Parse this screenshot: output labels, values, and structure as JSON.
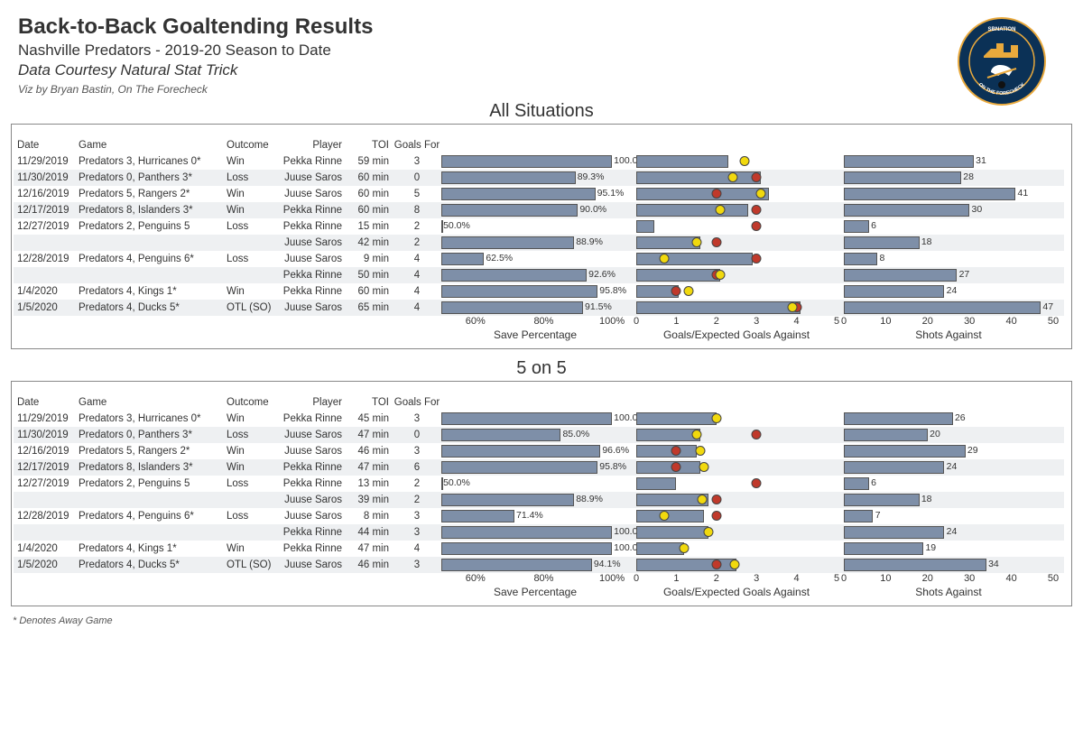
{
  "header": {
    "title": "Back-to-Back Goaltending Results",
    "subtitle": "Nashville Predators - 2019-20 Season to Date",
    "data_credit": "Data Courtesy Natural Stat Trick",
    "viz_credit": "Viz by Bryan Bastin, On The Forecheck"
  },
  "footnote": "* Denotes Away Game",
  "sections": [
    {
      "title": "All Situations",
      "savepct": {
        "min": 50,
        "max": 105,
        "ticks": [
          60,
          80,
          100
        ],
        "label": "Save Percentage"
      },
      "goals": {
        "min": 0,
        "max": 5,
        "ticks": [
          0,
          1,
          2,
          3,
          4,
          5
        ],
        "label": "Goals/Expected Goals Against"
      },
      "shots": {
        "min": 0,
        "max": 50,
        "ticks": [
          0,
          10,
          20,
          30,
          40,
          50
        ],
        "label": "Shots Against"
      },
      "columns": [
        "Date",
        "Game",
        "Outcome",
        "Player",
        "TOI",
        "Goals For"
      ],
      "rows": [
        {
          "date": "11/29/2019",
          "game": "Predators 3, Hurricanes 0*",
          "outcome": "Win",
          "player": "Pekka Rinne",
          "toi": "59 min",
          "gf": 3,
          "savepct": 100.0,
          "goals_bar": 2.3,
          "ga": 0,
          "xga": 2.7,
          "shots": 31
        },
        {
          "date": "11/30/2019",
          "game": "Predators 0, Panthers 3*",
          "outcome": "Loss",
          "player": "Juuse Saros",
          "toi": "60 min",
          "gf": 0,
          "savepct": 89.3,
          "goals_bar": 3.1,
          "ga": 3,
          "xga": 2.4,
          "shots": 28,
          "alt": true
        },
        {
          "date": "12/16/2019",
          "game": "Predators 5, Rangers 2*",
          "outcome": "Win",
          "player": "Juuse Saros",
          "toi": "60 min",
          "gf": 5,
          "savepct": 95.1,
          "goals_bar": 3.3,
          "ga": 2,
          "xga": 3.1,
          "shots": 41
        },
        {
          "date": "12/17/2019",
          "game": "Predators 8, Islanders 3*",
          "outcome": "Win",
          "player": "Pekka Rinne",
          "toi": "60 min",
          "gf": 8,
          "savepct": 90.0,
          "goals_bar": 2.8,
          "ga": 3,
          "xga": 2.1,
          "shots": 30,
          "alt": true
        },
        {
          "date": "12/27/2019",
          "game": "Predators 2, Penguins 5",
          "outcome": "Loss",
          "player": "Pekka Rinne",
          "toi": "15 min",
          "gf": 2,
          "savepct": 50.0,
          "goals_bar": 0.45,
          "ga": 3,
          "xga": null,
          "shots": 6
        },
        {
          "date": "",
          "game": "",
          "outcome": "",
          "player": "Juuse Saros",
          "toi": "42 min",
          "gf": 2,
          "savepct": 88.9,
          "goals_bar": 1.6,
          "ga": 2,
          "xga": 1.5,
          "shots": 18,
          "alt": true
        },
        {
          "date": "12/28/2019",
          "game": "Predators 4, Penguins 6*",
          "outcome": "Loss",
          "player": "Juuse Saros",
          "toi": "9 min",
          "gf": 4,
          "savepct": 62.5,
          "goals_bar": 2.9,
          "ga": 3,
          "xga": 0.7,
          "shots": 8
        },
        {
          "date": "",
          "game": "",
          "outcome": "",
          "player": "Pekka Rinne",
          "toi": "50 min",
          "gf": 4,
          "savepct": 92.6,
          "goals_bar": 2.1,
          "ga": 2,
          "xga": 2.1,
          "shots": 27,
          "alt": true
        },
        {
          "date": "1/4/2020",
          "game": "Predators 4, Kings 1*",
          "outcome": "Win",
          "player": "Pekka Rinne",
          "toi": "60 min",
          "gf": 4,
          "savepct": 95.8,
          "goals_bar": 1.05,
          "ga": 1,
          "xga": 1.3,
          "shots": 24
        },
        {
          "date": "1/5/2020",
          "game": "Predators 4, Ducks 5*",
          "outcome": "OTL (SO)",
          "player": "Juuse Saros",
          "toi": "65 min",
          "gf": 4,
          "savepct": 91.5,
          "goals_bar": 4.1,
          "ga": 4,
          "xga": 3.9,
          "shots": 47,
          "alt": true
        }
      ]
    },
    {
      "title": "5 on 5",
      "savepct": {
        "min": 50,
        "max": 105,
        "ticks": [
          60,
          80,
          100
        ],
        "label": "Save Percentage"
      },
      "goals": {
        "min": 0,
        "max": 5,
        "ticks": [
          0,
          1,
          2,
          3,
          4,
          5
        ],
        "label": "Goals/Expected Goals Against"
      },
      "shots": {
        "min": 0,
        "max": 50,
        "ticks": [
          0,
          10,
          20,
          30,
          40,
          50
        ],
        "label": "Shots Against"
      },
      "columns": [
        "Date",
        "Game",
        "Outcome",
        "Player",
        "TOI",
        "Goals For"
      ],
      "rows": [
        {
          "date": "11/29/2019",
          "game": "Predators 3, Hurricanes 0*",
          "outcome": "Win",
          "player": "Pekka Rinne",
          "toi": "45 min",
          "gf": 3,
          "savepct": 100.0,
          "goals_bar": 2.0,
          "ga": 0,
          "xga": 2.0,
          "shots": 26
        },
        {
          "date": "11/30/2019",
          "game": "Predators 0, Panthers 3*",
          "outcome": "Loss",
          "player": "Juuse Saros",
          "toi": "47 min",
          "gf": 0,
          "savepct": 85.0,
          "goals_bar": 1.6,
          "ga": 3,
          "xga": 1.5,
          "shots": 20,
          "alt": true
        },
        {
          "date": "12/16/2019",
          "game": "Predators 5, Rangers 2*",
          "outcome": "Win",
          "player": "Juuse Saros",
          "toi": "46 min",
          "gf": 3,
          "savepct": 96.6,
          "goals_bar": 1.5,
          "ga": 1,
          "xga": 1.6,
          "shots": 29
        },
        {
          "date": "12/17/2019",
          "game": "Predators 8, Islanders 3*",
          "outcome": "Win",
          "player": "Pekka Rinne",
          "toi": "47 min",
          "gf": 6,
          "savepct": 95.8,
          "goals_bar": 1.6,
          "ga": 1,
          "xga": 1.7,
          "shots": 24,
          "alt": true
        },
        {
          "date": "12/27/2019",
          "game": "Predators 2, Penguins 5",
          "outcome": "Loss",
          "player": "Pekka Rinne",
          "toi": "13 min",
          "gf": 2,
          "savepct": 50.0,
          "goals_bar": 1.0,
          "ga": 3,
          "xga": null,
          "shots": 6
        },
        {
          "date": "",
          "game": "",
          "outcome": "",
          "player": "Juuse Saros",
          "toi": "39 min",
          "gf": 2,
          "savepct": 88.9,
          "goals_bar": 1.8,
          "ga": 2,
          "xga": 1.65,
          "shots": 18,
          "alt": true
        },
        {
          "date": "12/28/2019",
          "game": "Predators 4, Penguins 6*",
          "outcome": "Loss",
          "player": "Juuse Saros",
          "toi": "8 min",
          "gf": 3,
          "savepct": 71.4,
          "goals_bar": 1.7,
          "ga": 2,
          "xga": 0.7,
          "shots": 7
        },
        {
          "date": "",
          "game": "",
          "outcome": "",
          "player": "Pekka Rinne",
          "toi": "44 min",
          "gf": 3,
          "savepct": 100.0,
          "goals_bar": 1.8,
          "ga": 0,
          "xga": 1.8,
          "shots": 24,
          "alt": true
        },
        {
          "date": "1/4/2020",
          "game": "Predators 4, Kings 1*",
          "outcome": "Win",
          "player": "Pekka Rinne",
          "toi": "47 min",
          "gf": 4,
          "savepct": 100.0,
          "goals_bar": 1.2,
          "ga": 0,
          "xga": 1.2,
          "shots": 19
        },
        {
          "date": "1/5/2020",
          "game": "Predators 4, Ducks 5*",
          "outcome": "OTL (SO)",
          "player": "Juuse Saros",
          "toi": "46 min",
          "gf": 3,
          "savepct": 94.1,
          "goals_bar": 2.5,
          "ga": 2,
          "xga": 2.45,
          "shots": 34,
          "alt": true
        }
      ]
    }
  ],
  "colors": {
    "bar": "#7e8fa8",
    "ga_dot": "#c0392b",
    "xga_dot": "#f1d90e"
  }
}
